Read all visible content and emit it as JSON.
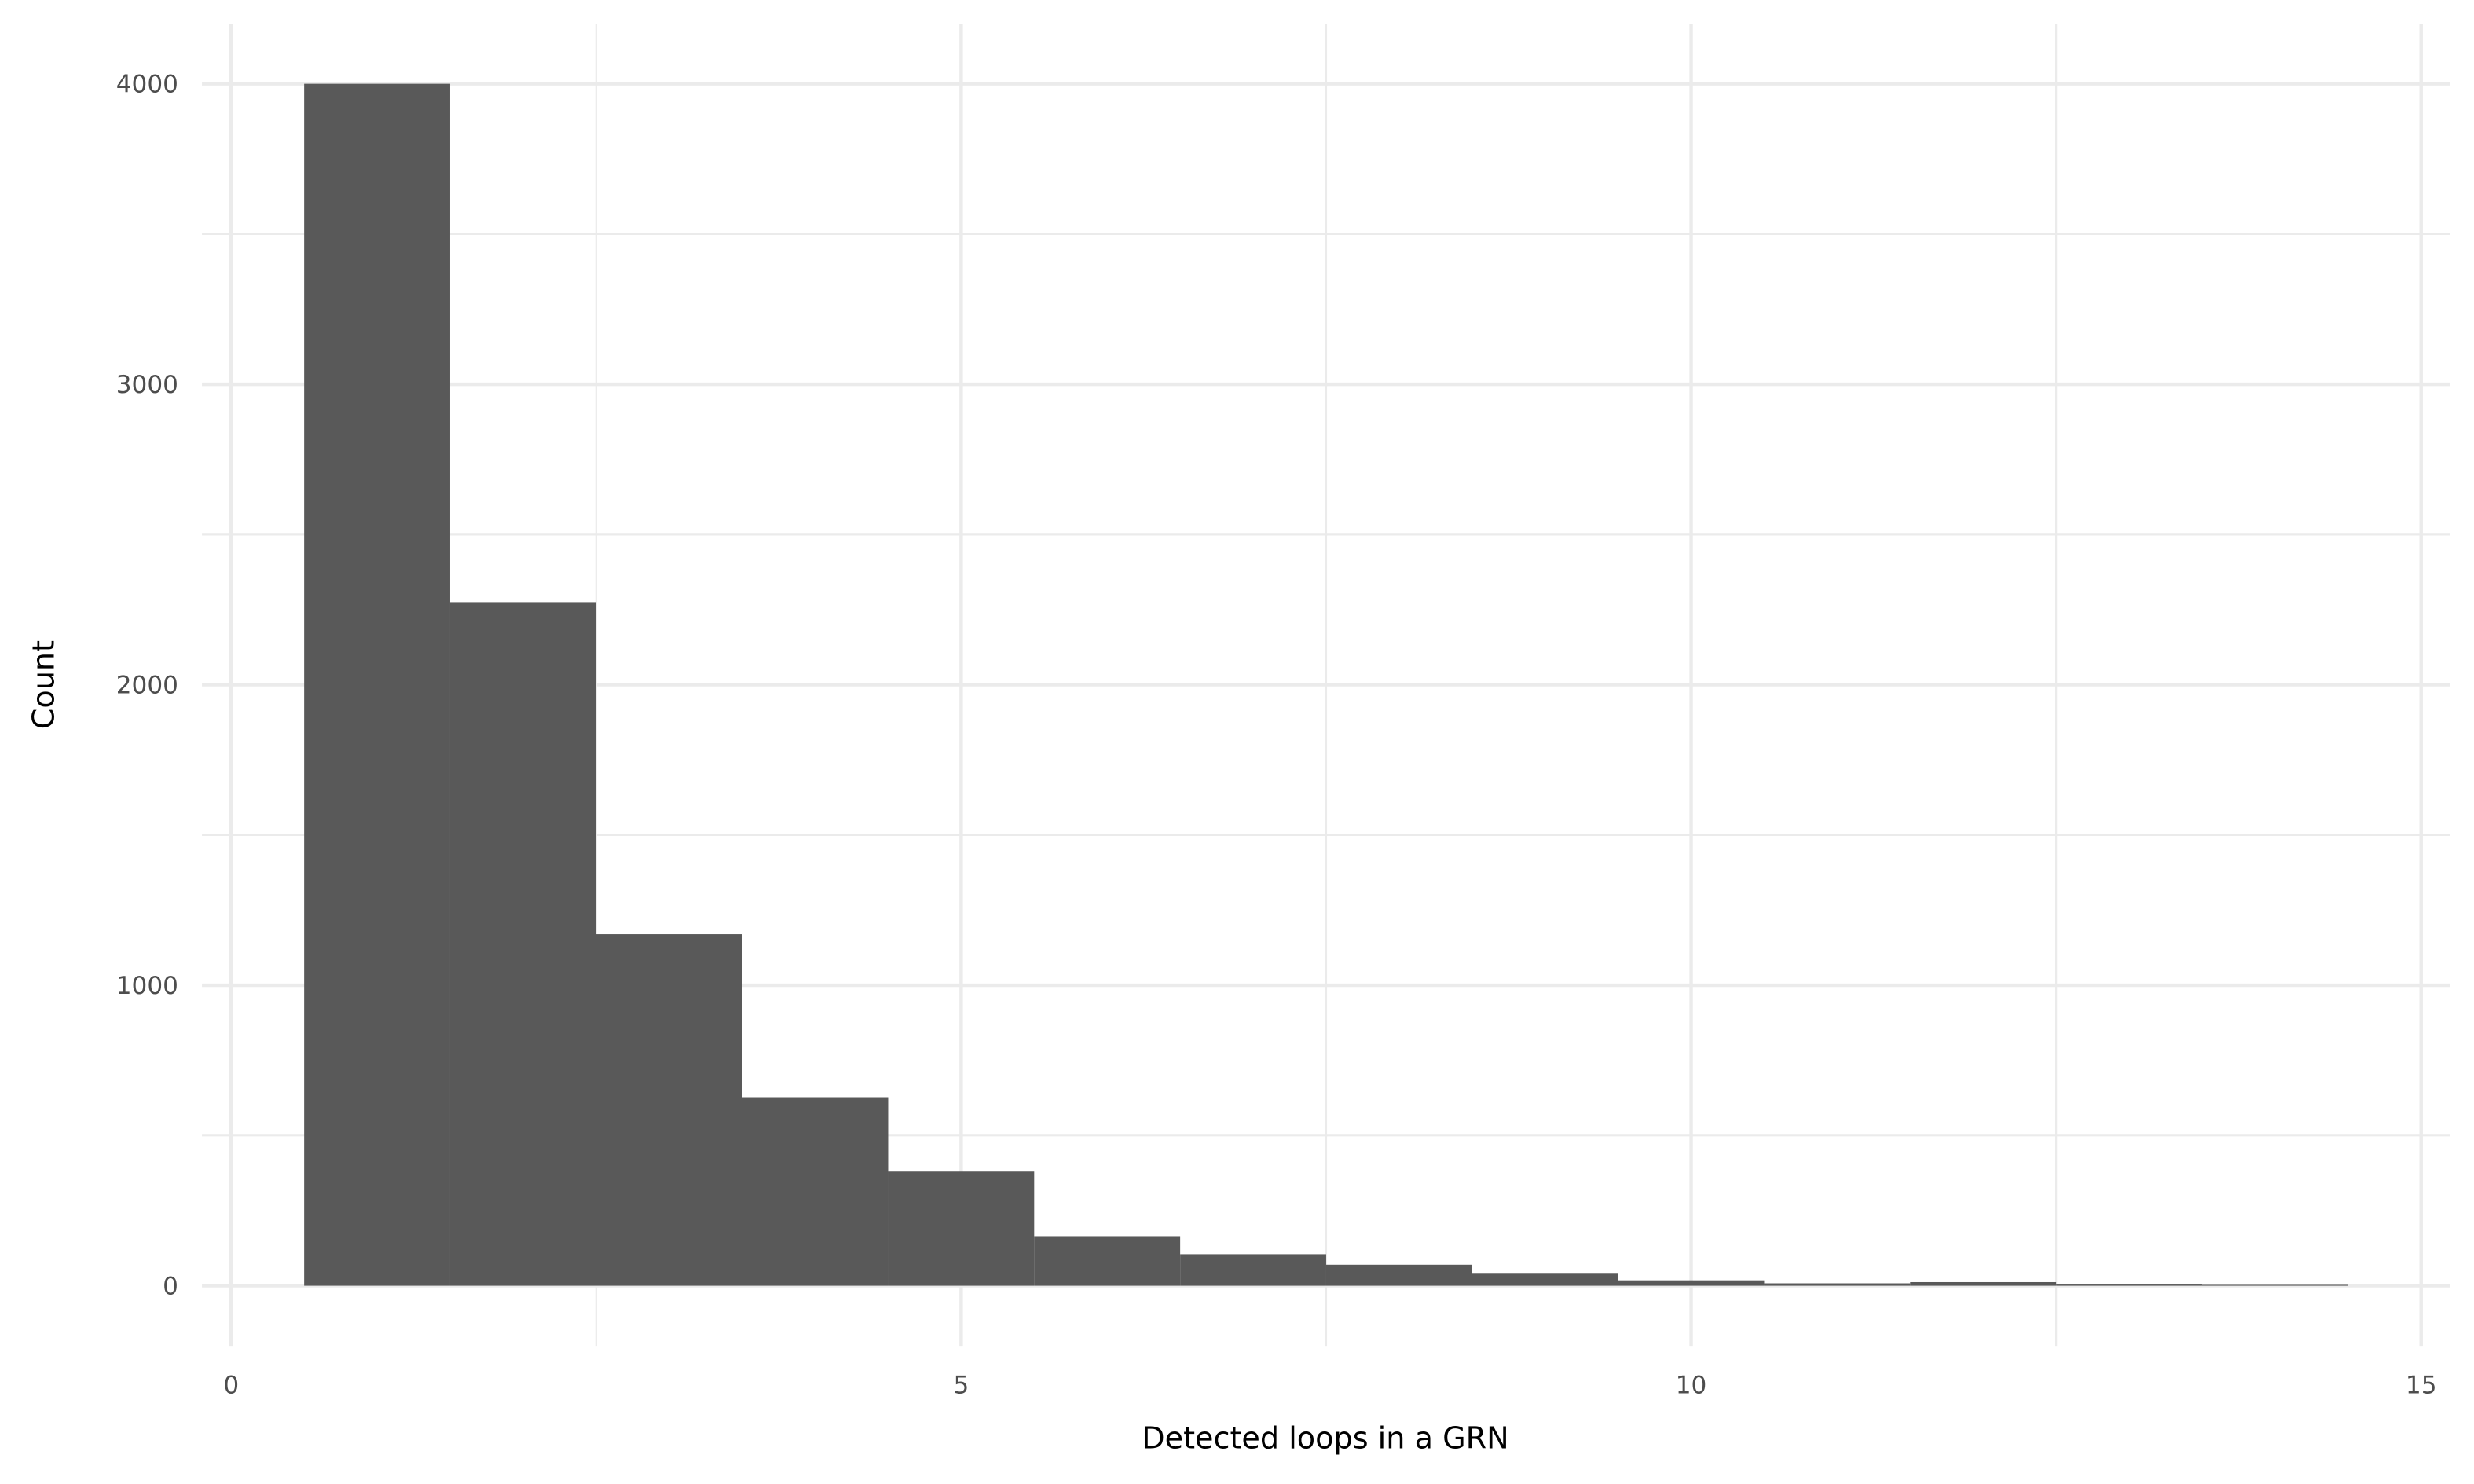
{
  "chart_data": {
    "type": "histogram",
    "x_label": "Detected loops in a GRN",
    "y_label": "Count",
    "bins": [
      0.5,
      1.5,
      2.5,
      3.5,
      4.5,
      5.5,
      6.5,
      7.5,
      8.5,
      9.5,
      10.5,
      11.5,
      12.5,
      13.5,
      14.5
    ],
    "values": [
      4000,
      2275,
      1170,
      625,
      380,
      165,
      105,
      70,
      40,
      18,
      8,
      12,
      4,
      3
    ],
    "color": "#595959",
    "xlim": [
      -0.2,
      15.2
    ],
    "xticks": [
      0,
      5,
      10,
      15
    ],
    "xminor": [
      2.5,
      7.5,
      12.5
    ],
    "ylim": [
      -200,
      4200
    ],
    "yticks": [
      0,
      1000,
      2000,
      3000,
      4000
    ],
    "yminor": [
      500,
      1500,
      2500,
      3500
    ],
    "grid": true
  }
}
